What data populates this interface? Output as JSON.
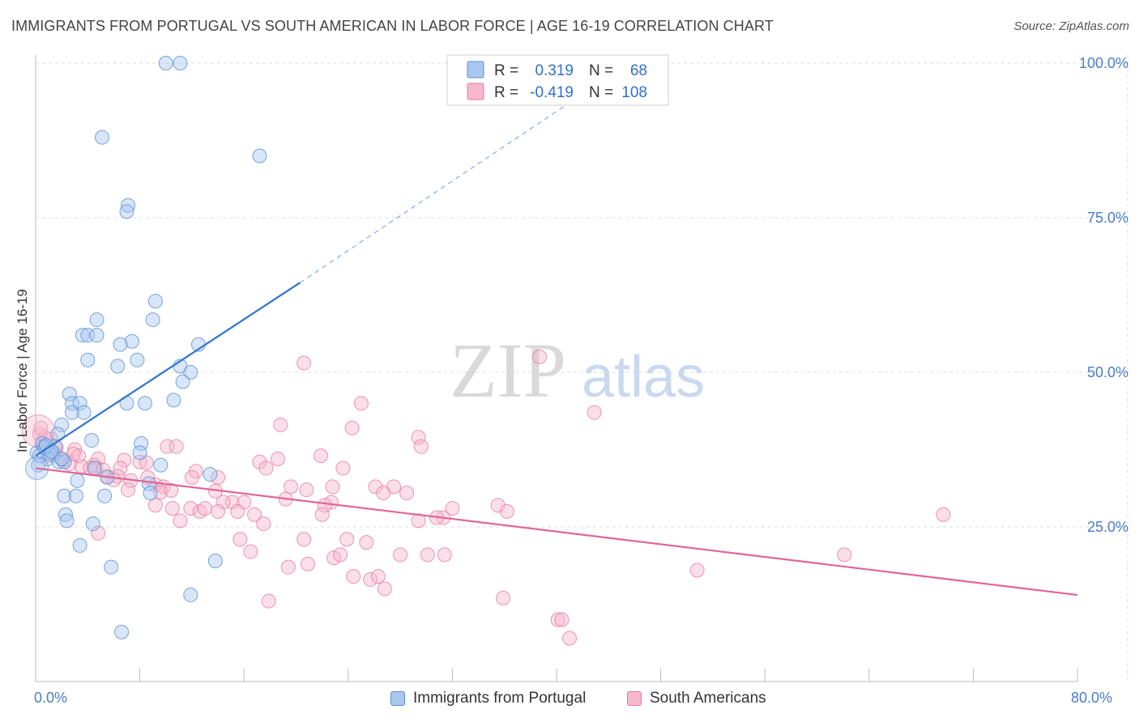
{
  "title": "IMMIGRANTS FROM PORTUGAL VS SOUTH AMERICAN IN LABOR FORCE | AGE 16-19 CORRELATION CHART",
  "source": "Source: ZipAtlas.com",
  "watermark": {
    "zip": "ZIP",
    "atlas": "atlas"
  },
  "legend_top": [
    {
      "r_label": "R =",
      "r_value": "0.319",
      "n_label": "N =",
      "n_value": "68"
    },
    {
      "r_label": "R =",
      "r_value": "-0.419",
      "n_label": "N =",
      "n_value": "108"
    }
  ],
  "legend_bottom": [
    {
      "label": "Immigrants from Portugal"
    },
    {
      "label": "South Americans"
    }
  ],
  "colors": {
    "blue_fill": "#a9c7ef",
    "blue_stroke": "#5b8fd6",
    "blue_line": "#2f74d0",
    "pink_fill": "#f6b8cc",
    "pink_stroke": "#e77aa0",
    "pink_line": "#e0659a",
    "tick_text": "#4a7cc9",
    "grid": "#dddddd"
  },
  "chart_data": {
    "type": "scatter",
    "title": "IMMIGRANTS FROM PORTUGAL VS SOUTH AMERICAN IN LABOR FORCE | AGE 16-19 CORRELATION CHART",
    "xlabel": "",
    "ylabel": "In Labor Force | Age 16-19",
    "xlim": [
      0,
      80
    ],
    "ylim": [
      0,
      105
    ],
    "x_tick_labels": [
      "0.0%",
      "80.0%"
    ],
    "y_ticks": [
      25,
      50,
      75,
      100
    ],
    "y_tick_labels": [
      "25.0%",
      "50.0%",
      "75.0%",
      "100.0%"
    ],
    "grid": true,
    "legend_placement": "top-center",
    "series": [
      {
        "name": "Immigrants from Portugal",
        "R": 0.319,
        "N": 68,
        "trend": {
          "x0": 0,
          "y0": 36.5,
          "x1": 20.3,
          "y1": 64.5,
          "dashed_to_x": 42,
          "dashed_to_y": 95
        },
        "points": [
          [
            10.0,
            100
          ],
          [
            11.1,
            100
          ],
          [
            5.1,
            88
          ],
          [
            17.2,
            85
          ],
          [
            7.1,
            77
          ],
          [
            7.0,
            76
          ],
          [
            9.2,
            61.5
          ],
          [
            4.7,
            58.5
          ],
          [
            9.0,
            58.5
          ],
          [
            3.6,
            56
          ],
          [
            4.0,
            56
          ],
          [
            4.7,
            56
          ],
          [
            7.4,
            55
          ],
          [
            6.5,
            54.5
          ],
          [
            12.5,
            54.5
          ],
          [
            4.0,
            52
          ],
          [
            7.8,
            52
          ],
          [
            6.3,
            51
          ],
          [
            11.1,
            51
          ],
          [
            11.9,
            50
          ],
          [
            11.3,
            48.5
          ],
          [
            10.6,
            45.5
          ],
          [
            2.6,
            46.5
          ],
          [
            7.0,
            45
          ],
          [
            8.4,
            45
          ],
          [
            2.8,
            45
          ],
          [
            3.4,
            45
          ],
          [
            2.8,
            43.5
          ],
          [
            3.7,
            43.5
          ],
          [
            2.0,
            41.5
          ],
          [
            1.7,
            40
          ],
          [
            4.3,
            39
          ],
          [
            8.1,
            38.5
          ],
          [
            8.0,
            37
          ],
          [
            0.6,
            38
          ],
          [
            1.0,
            37.5
          ],
          [
            1.3,
            37
          ],
          [
            0.9,
            36
          ],
          [
            1.8,
            35.5
          ],
          [
            2.2,
            35.5
          ],
          [
            9.6,
            35
          ],
          [
            4.5,
            34.5
          ],
          [
            13.4,
            33.5
          ],
          [
            3.2,
            32.5
          ],
          [
            5.5,
            33
          ],
          [
            8.7,
            32
          ],
          [
            8.8,
            30.5
          ],
          [
            5.3,
            30
          ],
          [
            2.2,
            30
          ],
          [
            3.1,
            30
          ],
          [
            2.3,
            27
          ],
          [
            2.4,
            26
          ],
          [
            4.4,
            25.5
          ],
          [
            3.4,
            22
          ],
          [
            13.8,
            19.5
          ],
          [
            5.8,
            18.5
          ],
          [
            11.9,
            14
          ],
          [
            6.6,
            8
          ],
          [
            0.1,
            37
          ],
          [
            0.2,
            35
          ],
          [
            0.5,
            38.5
          ],
          [
            0.3,
            36.5
          ],
          [
            1.5,
            38
          ],
          [
            1.1,
            36.8
          ],
          [
            0.7,
            37.8
          ],
          [
            2.0,
            36
          ],
          [
            0.8,
            38.2
          ],
          [
            1.2,
            37.2
          ]
        ]
      },
      {
        "name": "South Americans",
        "R": -0.419,
        "N": 108,
        "trend": {
          "x0": 0,
          "y0": 34.5,
          "x1": 80,
          "y1": 14.0
        },
        "points": [
          [
            38.7,
            52.5
          ],
          [
            20.6,
            51.5
          ],
          [
            25.0,
            45
          ],
          [
            18.8,
            41.5
          ],
          [
            24.3,
            41
          ],
          [
            42.9,
            43.5
          ],
          [
            29.4,
            39.5
          ],
          [
            29.6,
            38
          ],
          [
            10.1,
            38
          ],
          [
            10.8,
            38
          ],
          [
            21.9,
            36.5
          ],
          [
            3.0,
            37.5
          ],
          [
            1.5,
            37
          ],
          [
            2.2,
            35.8
          ],
          [
            4.8,
            36
          ],
          [
            6.8,
            35.8
          ],
          [
            8.0,
            35.5
          ],
          [
            4.5,
            35
          ],
          [
            3.5,
            34.8
          ],
          [
            6.5,
            34.5
          ],
          [
            12.3,
            34
          ],
          [
            12.0,
            33
          ],
          [
            7.3,
            32.5
          ],
          [
            8.6,
            33
          ],
          [
            14.0,
            33
          ],
          [
            4.2,
            34.5
          ],
          [
            17.2,
            35.5
          ],
          [
            17.7,
            34.5
          ],
          [
            18.6,
            36
          ],
          [
            23.6,
            34.5
          ],
          [
            5.5,
            33.2
          ],
          [
            6.3,
            33.2
          ],
          [
            9.2,
            31.8
          ],
          [
            13.8,
            30.8
          ],
          [
            7.1,
            31
          ],
          [
            9.8,
            31.5
          ],
          [
            19.6,
            31.5
          ],
          [
            20.8,
            31
          ],
          [
            22.8,
            31.5
          ],
          [
            27.5,
            31.5
          ],
          [
            26.1,
            31.5
          ],
          [
            26.7,
            30.5
          ],
          [
            28.5,
            30.5
          ],
          [
            19.2,
            29.5
          ],
          [
            22.7,
            29
          ],
          [
            22.2,
            28.5
          ],
          [
            15.1,
            29
          ],
          [
            14.4,
            29
          ],
          [
            16.0,
            29
          ],
          [
            11.9,
            28
          ],
          [
            9.2,
            28.5
          ],
          [
            10.5,
            28
          ],
          [
            12.6,
            27.5
          ],
          [
            13.0,
            28
          ],
          [
            16.8,
            27
          ],
          [
            14.0,
            27.5
          ],
          [
            15.5,
            27.5
          ],
          [
            22.0,
            27
          ],
          [
            32.0,
            28
          ],
          [
            35.5,
            28.5
          ],
          [
            36.2,
            27.5
          ],
          [
            31.3,
            26.5
          ],
          [
            29.4,
            26
          ],
          [
            30.8,
            26.5
          ],
          [
            11.1,
            26
          ],
          [
            4.8,
            24
          ],
          [
            17.5,
            25.5
          ],
          [
            20.6,
            23
          ],
          [
            22.9,
            20
          ],
          [
            23.9,
            23
          ],
          [
            25.4,
            22.5
          ],
          [
            15.7,
            23
          ],
          [
            16.5,
            21
          ],
          [
            20.9,
            19
          ],
          [
            23.4,
            20.5
          ],
          [
            28.0,
            20.5
          ],
          [
            30.1,
            20.5
          ],
          [
            31.4,
            20.5
          ],
          [
            19.4,
            18.5
          ],
          [
            24.4,
            17
          ],
          [
            25.7,
            16.5
          ],
          [
            26.3,
            17
          ],
          [
            26.8,
            15
          ],
          [
            17.9,
            13
          ],
          [
            35.9,
            13.5
          ],
          [
            40.1,
            10
          ],
          [
            40.4,
            10
          ],
          [
            41.0,
            7
          ],
          [
            50.8,
            18
          ],
          [
            62.1,
            20.5
          ],
          [
            69.7,
            27
          ],
          [
            0.3,
            40
          ],
          [
            0.5,
            38.5
          ],
          [
            0.7,
            39.5
          ],
          [
            1.0,
            36.5
          ],
          [
            2.0,
            36
          ],
          [
            3.3,
            36.5
          ],
          [
            4.6,
            34.5
          ],
          [
            0.4,
            41
          ],
          [
            1.6,
            37.8
          ],
          [
            2.6,
            35.2
          ],
          [
            5.2,
            34.2
          ],
          [
            8.5,
            35.4
          ],
          [
            6.0,
            32.6
          ],
          [
            9.6,
            30.6
          ],
          [
            10.4,
            30.9
          ],
          [
            2.9,
            36.8
          ],
          [
            1.2,
            39.2
          ]
        ]
      }
    ]
  }
}
